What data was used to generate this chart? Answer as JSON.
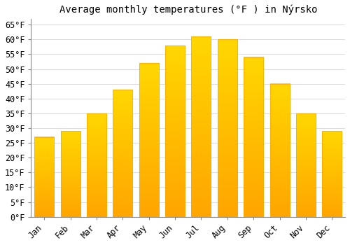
{
  "title": "Average monthly temperatures (°F ) in Nýrsko",
  "months": [
    "Jan",
    "Feb",
    "Mar",
    "Apr",
    "May",
    "Jun",
    "Jul",
    "Aug",
    "Sep",
    "Oct",
    "Nov",
    "Dec"
  ],
  "values": [
    27,
    29,
    35,
    43,
    52,
    58,
    61,
    60,
    54,
    45,
    35,
    29
  ],
  "bar_color_bottom": "#FFA500",
  "bar_color_top": "#FFD700",
  "bar_edge_color": "#FFA500",
  "background_color": "#FFFFFF",
  "grid_color": "#DDDDDD",
  "ylim": [
    0,
    67
  ],
  "yticks": [
    0,
    5,
    10,
    15,
    20,
    25,
    30,
    35,
    40,
    45,
    50,
    55,
    60,
    65
  ],
  "title_fontsize": 10,
  "tick_fontsize": 8.5,
  "font_family": "monospace",
  "bar_width": 0.75
}
